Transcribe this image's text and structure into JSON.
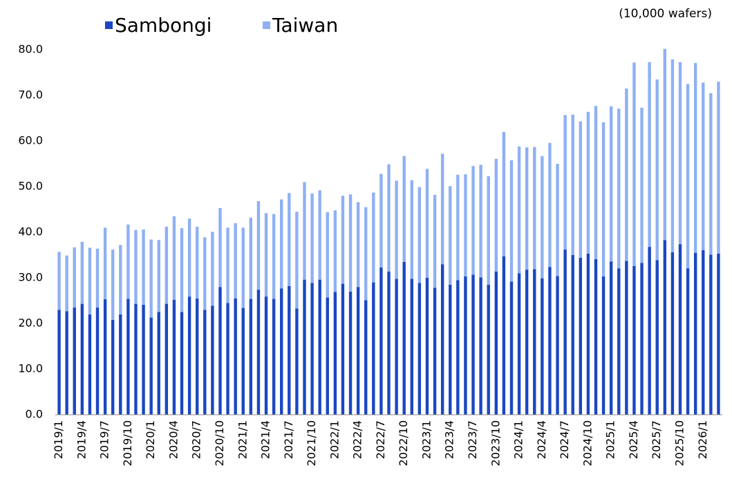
{
  "chart_data": {
    "type": "stacked_bar",
    "unit_note": "(10,000 wafers)",
    "categories": [
      "2019/1",
      null,
      null,
      "2019/4",
      null,
      null,
      "2019/7",
      null,
      null,
      "2019/10",
      null,
      null,
      "2020/1",
      null,
      null,
      "2020/4",
      null,
      null,
      "2020/7",
      null,
      null,
      "2020/10",
      null,
      null,
      "2021/1",
      null,
      null,
      "2021/4",
      null,
      null,
      "2021/7",
      null,
      null,
      "2021/10",
      null,
      null,
      "2022/1",
      null,
      null,
      "2022/4",
      null,
      null,
      "2022/7",
      null,
      null,
      "2022/10",
      null,
      null,
      "2023/1",
      null,
      null,
      "2023/4",
      null,
      null,
      "2023/7",
      null,
      null,
      "2023/10",
      null,
      null,
      "2024/1",
      null,
      null,
      "2024/4",
      null,
      null,
      "2024/7",
      null,
      null,
      "2024/10",
      null,
      null,
      "2025/1",
      null,
      null,
      "2025/4",
      null,
      null,
      "2025/7",
      null,
      null,
      "2025/10",
      null,
      null,
      "2026/1",
      null,
      null
    ],
    "series": [
      {
        "name": "Sambongi",
        "color": "#1a47c2",
        "values": [
          23.0,
          22.7,
          23.5,
          24.3,
          22.0,
          23.5,
          25.3,
          20.8,
          22.0,
          25.4,
          24.3,
          24.1,
          21.3,
          22.5,
          24.3,
          25.2,
          22.5,
          25.9,
          25.5,
          23.0,
          23.9,
          28.0,
          24.5,
          25.5,
          23.4,
          25.4,
          27.4,
          25.9,
          25.4,
          27.7,
          28.2,
          23.3,
          29.6,
          28.9,
          29.6,
          25.7,
          26.9,
          28.7,
          27.0,
          28.0,
          25.1,
          29.0,
          32.3,
          31.4,
          29.8,
          33.5,
          29.8,
          28.9,
          30.0,
          27.8,
          33.0,
          28.5,
          29.5,
          30.3,
          30.7,
          30.1,
          28.5,
          31.4,
          34.7,
          29.2,
          31.0,
          31.8,
          31.9,
          29.9,
          32.4,
          30.4,
          36.2,
          35.0,
          34.4,
          35.3,
          34.1,
          30.3,
          33.6,
          32.1,
          33.7,
          32.6,
          33.3,
          36.8,
          33.9,
          38.3,
          35.6,
          37.4,
          32.1,
          35.5,
          36.1,
          35.1,
          35.3
        ]
      },
      {
        "name": "Taiwan",
        "color": "#8fb0f2",
        "values": [
          12.7,
          12.2,
          13.2,
          13.6,
          14.6,
          12.9,
          15.7,
          15.4,
          15.2,
          16.3,
          16.2,
          16.5,
          17.1,
          15.8,
          16.9,
          18.3,
          18.4,
          17.1,
          15.7,
          15.9,
          16.2,
          17.3,
          16.5,
          16.5,
          17.6,
          17.8,
          19.4,
          18.3,
          18.6,
          19.5,
          20.4,
          21.2,
          21.4,
          19.6,
          19.6,
          18.7,
          17.9,
          19.3,
          21.3,
          18.6,
          20.4,
          19.7,
          20.5,
          23.5,
          21.5,
          23.2,
          21.6,
          21.0,
          23.9,
          20.4,
          24.2,
          21.6,
          23.1,
          22.4,
          23.8,
          24.7,
          23.8,
          24.7,
          27.3,
          26.6,
          27.8,
          26.8,
          26.8,
          26.8,
          27.2,
          24.6,
          29.5,
          30.8,
          29.9,
          31.1,
          33.6,
          33.8,
          34.0,
          35.0,
          37.8,
          44.6,
          34.0,
          40.5,
          39.6,
          41.9,
          42.3,
          39.9,
          40.4,
          41.6,
          36.7,
          35.4,
          37.7
        ]
      }
    ],
    "ylim": [
      0,
      80
    ],
    "yticks": [
      {
        "value": 0,
        "label": "0.0"
      },
      {
        "value": 10,
        "label": "10.0"
      },
      {
        "value": 20,
        "label": "20.0"
      },
      {
        "value": 30,
        "label": "30.0"
      },
      {
        "value": 40,
        "label": "40.0"
      },
      {
        "value": 50,
        "label": "50.0"
      },
      {
        "value": 60,
        "label": "60.0"
      },
      {
        "value": 70,
        "label": "70.0"
      },
      {
        "value": 80,
        "label": "80.0"
      }
    ],
    "grid": false,
    "legend": "top-left"
  }
}
